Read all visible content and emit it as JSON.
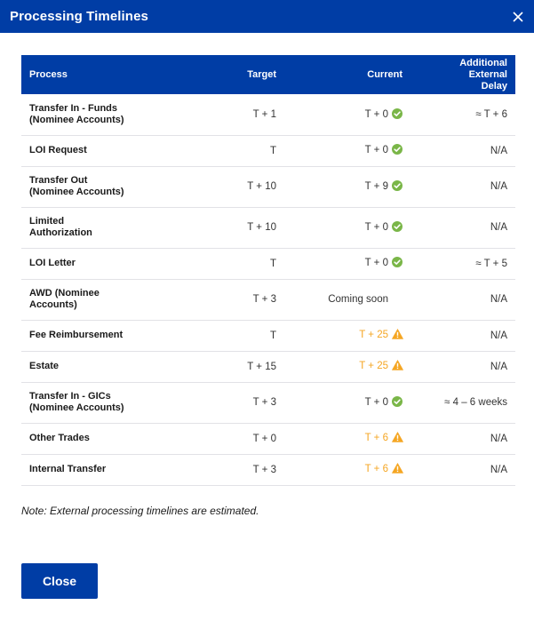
{
  "dialog": {
    "title": "Processing Timelines",
    "close_icon": "close-icon"
  },
  "table": {
    "headers": {
      "process": "Process",
      "target": "Target",
      "current": "Current",
      "delay": "Additional External Delay"
    },
    "rows": [
      {
        "process": "Transfer In - Funds (Nominee Accounts)",
        "target": "T + 1",
        "current": "T + 0",
        "status": "ok",
        "delay": "≈ T + 6"
      },
      {
        "process": "LOI Request",
        "target": "T",
        "current": "T + 0",
        "status": "ok",
        "delay": "N/A"
      },
      {
        "process": "Transfer Out (Nominee Accounts)",
        "target": "T + 10",
        "current": "T + 9",
        "status": "ok",
        "delay": "N/A"
      },
      {
        "process": "Limited Authorization",
        "target": "T + 10",
        "current": "T + 0",
        "status": "ok",
        "delay": "N/A"
      },
      {
        "process": "LOI Letter",
        "target": "T",
        "current": "T + 0",
        "status": "ok",
        "delay": "≈ T + 5"
      },
      {
        "process": "AWD (Nominee Accounts)",
        "target": "T + 3",
        "current": "Coming soon",
        "status": "pending",
        "delay": "N/A"
      },
      {
        "process": "Fee Reimbursement",
        "target": "T",
        "current": "T + 25",
        "status": "warning",
        "delay": "N/A"
      },
      {
        "process": "Estate",
        "target": "T + 15",
        "current": "T + 25",
        "status": "warning",
        "delay": "N/A"
      },
      {
        "process": "Transfer In - GICs (Nominee Accounts)",
        "target": "T + 3",
        "current": "T + 0",
        "status": "ok",
        "delay": "≈ 4 – 6 weeks"
      },
      {
        "process": "Other Trades",
        "target": "T + 0",
        "current": "T + 6",
        "status": "warning",
        "delay": "N/A"
      },
      {
        "process": "Internal Transfer",
        "target": "T + 3",
        "current": "T + 6",
        "status": "warning",
        "delay": "N/A"
      }
    ]
  },
  "status_icons": {
    "ok": "check-circle-icon",
    "warning": "warning-triangle-icon"
  },
  "colors": {
    "brand": "#003da5",
    "ok": "#7ab648",
    "warning": "#f5a623",
    "divider": "#e2e2e6"
  },
  "note": "Note: External processing timelines are estimated.",
  "footer": {
    "close_label": "Close"
  }
}
